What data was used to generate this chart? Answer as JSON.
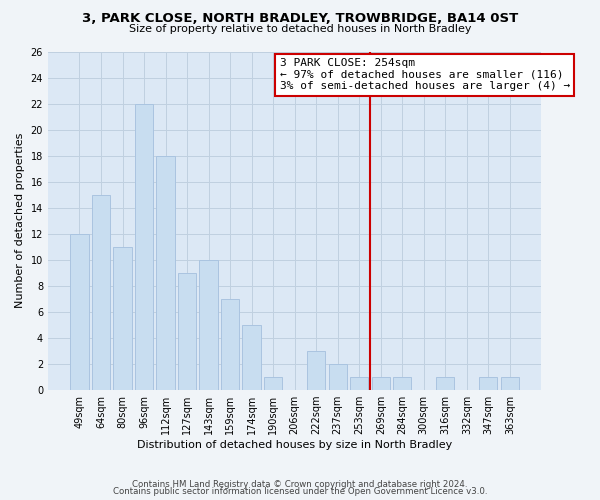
{
  "title": "3, PARK CLOSE, NORTH BRADLEY, TROWBRIDGE, BA14 0ST",
  "subtitle": "Size of property relative to detached houses in North Bradley",
  "xlabel": "Distribution of detached houses by size in North Bradley",
  "ylabel": "Number of detached properties",
  "bar_labels": [
    "49sqm",
    "64sqm",
    "80sqm",
    "96sqm",
    "112sqm",
    "127sqm",
    "143sqm",
    "159sqm",
    "174sqm",
    "190sqm",
    "206sqm",
    "222sqm",
    "237sqm",
    "253sqm",
    "269sqm",
    "284sqm",
    "300sqm",
    "316sqm",
    "332sqm",
    "347sqm",
    "363sqm"
  ],
  "bar_values": [
    12,
    15,
    11,
    22,
    18,
    9,
    10,
    7,
    5,
    1,
    0,
    3,
    2,
    1,
    1,
    1,
    0,
    1,
    0,
    1,
    1
  ],
  "bar_color": "#c8ddf0",
  "bar_edge_color": "#aac4e0",
  "ylim": [
    0,
    26
  ],
  "yticks": [
    0,
    2,
    4,
    6,
    8,
    10,
    12,
    14,
    16,
    18,
    20,
    22,
    24,
    26
  ],
  "vline_color": "#cc0000",
  "vline_x_index": 13,
  "annotation_title": "3 PARK CLOSE: 254sqm",
  "annotation_line1": "← 97% of detached houses are smaller (116)",
  "annotation_line2": "3% of semi-detached houses are larger (4) →",
  "annotation_box_color": "#ffffff",
  "annotation_box_edge": "#cc0000",
  "footer1": "Contains HM Land Registry data © Crown copyright and database right 2024.",
  "footer2": "Contains public sector information licensed under the Open Government Licence v3.0.",
  "background_color": "#f0f4f8",
  "plot_bg_color": "#dce8f5",
  "grid_color": "#c0d0e0"
}
